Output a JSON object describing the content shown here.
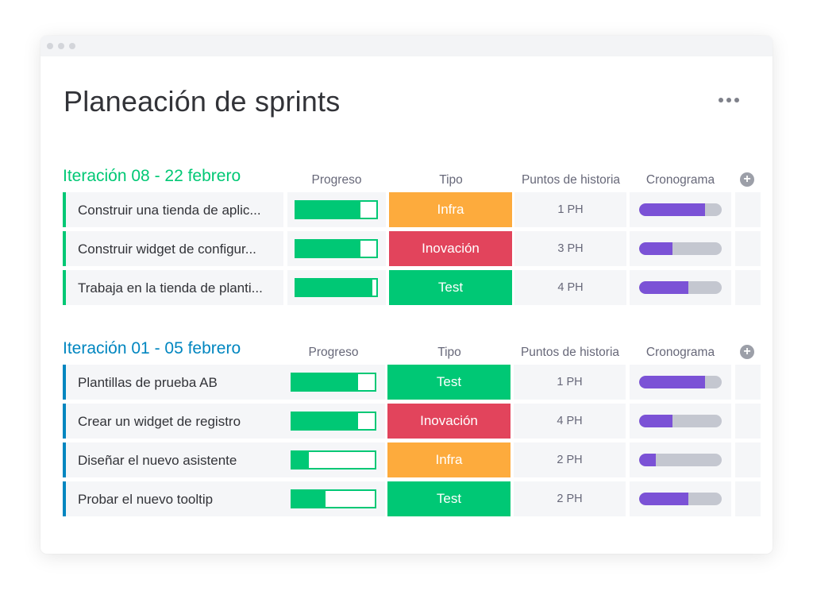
{
  "window": {
    "dots": 3
  },
  "page": {
    "title": "Planeación de sprints",
    "more_icon": "more-horizontal-icon"
  },
  "colors": {
    "green": "#00c875",
    "orange": "#fdab3d",
    "red": "#e2445c",
    "purple": "#7b52d6",
    "blue": "#0086c0",
    "grey_track": "#c4c7d0"
  },
  "groups": [
    {
      "title": "Iteración 08 - 22 febrero",
      "color": "#00c875",
      "columns": {
        "progress": "Progreso",
        "type": "Tipo",
        "points": "Puntos de historia",
        "timeline": "Cronograma"
      },
      "rows": [
        {
          "name": "Construir una tienda de aplic...",
          "progress": 0.8,
          "type": "Infra",
          "type_color": "#fdab3d",
          "points": "1 PH",
          "timeline": 0.8
        },
        {
          "name": "Construir widget de configur...",
          "progress": 0.8,
          "type": "Inovación",
          "type_color": "#e2445c",
          "points": "3 PH",
          "timeline": 0.4
        },
        {
          "name": "Trabaja en la tienda de planti...",
          "progress": 0.95,
          "type": "Test",
          "type_color": "#00c875",
          "points": "4 PH",
          "timeline": 0.6
        }
      ]
    },
    {
      "title": "Iteración 01 - 05 febrero",
      "color": "#0086c0",
      "columns": {
        "progress": "Progreso",
        "type": "Tipo",
        "points": "Puntos de historia",
        "timeline": "Cronograma"
      },
      "rows": [
        {
          "name": "Plantillas de prueba AB",
          "progress": 0.8,
          "type": "Test",
          "type_color": "#00c875",
          "points": "1 PH",
          "timeline": 0.8
        },
        {
          "name": "Crear un widget de registro",
          "progress": 0.8,
          "type": "Inovación",
          "type_color": "#e2445c",
          "points": "4 PH",
          "timeline": 0.4
        },
        {
          "name": "Diseñar el nuevo asistente",
          "progress": 0.2,
          "type": "Infra",
          "type_color": "#fdab3d",
          "points": "2 PH",
          "timeline": 0.2
        },
        {
          "name": "Probar el nuevo tooltip",
          "progress": 0.4,
          "type": "Test",
          "type_color": "#00c875",
          "points": "2 PH",
          "timeline": 0.6
        }
      ]
    }
  ]
}
